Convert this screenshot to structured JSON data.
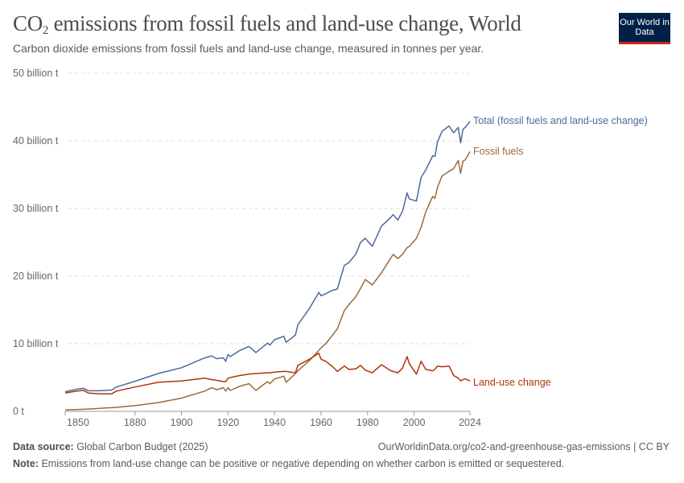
{
  "header": {
    "title_prefix": "CO",
    "title_subscript": "2",
    "title_rest": " emissions from fossil fuels and land-use change, World",
    "subtitle": "Carbon dioxide emissions from fossil fuels and land-use change, measured in tonnes per year.",
    "logo_text": "Our World in Data"
  },
  "footer": {
    "source_label": "Data source:",
    "source_value": "Global Carbon Budget (2025)",
    "url": "OurWorldinData.org/co2-and-greenhouse-gas-emissions | CC BY",
    "note_label": "Note:",
    "note_value": "Emissions from land-use change can be positive or negative depending on whether carbon is emitted or sequestered."
  },
  "chart_data": {
    "type": "line",
    "title": "CO₂ emissions from fossil fuels and land-use change, World",
    "xlabel": "",
    "ylabel": "",
    "xlim": [
      1850,
      2024
    ],
    "ylim": [
      0,
      50
    ],
    "x_ticks": [
      "1850",
      "1880",
      "1900",
      "1920",
      "1940",
      "1960",
      "1980",
      "2000",
      "2024"
    ],
    "y_ticks": [
      {
        "value": 0,
        "label": "0 t"
      },
      {
        "value": 10,
        "label": "10 billion t"
      },
      {
        "value": 20,
        "label": "20 billion t"
      },
      {
        "value": 30,
        "label": "30 billion t"
      },
      {
        "value": 40,
        "label": "40 billion t"
      },
      {
        "value": 50,
        "label": "50 billion t"
      }
    ],
    "grid": "horizontal dashed",
    "legend": "line-end labels",
    "x": [
      1850,
      1855,
      1858,
      1860,
      1865,
      1870,
      1872,
      1880,
      1890,
      1900,
      1910,
      1913,
      1915,
      1918,
      1919,
      1920,
      1921,
      1925,
      1929,
      1932,
      1937,
      1938,
      1940,
      1944,
      1945,
      1949,
      1950,
      1955,
      1959,
      1960,
      1962,
      1965,
      1967,
      1970,
      1972,
      1975,
      1977,
      1979,
      1982,
      1986,
      1990,
      1991,
      1993,
      1995,
      1997,
      1998,
      2001,
      2003,
      2005,
      2008,
      2009,
      2010,
      2012,
      2015,
      2017,
      2019,
      2020,
      2021,
      2022,
      2024
    ],
    "series": [
      {
        "name": "Total (fossil fuels and land-use change)",
        "color": "#4c6a9c",
        "values": [
          2.9,
          3.27,
          3.41,
          3.05,
          3.05,
          3.15,
          3.6,
          4.45,
          5.6,
          6.45,
          7.9,
          8.2,
          7.8,
          7.9,
          7.4,
          8.4,
          8.1,
          9.0,
          9.6,
          8.7,
          10.1,
          9.8,
          10.6,
          11.1,
          10.2,
          11.3,
          12.8,
          15.2,
          17.6,
          17.1,
          17.4,
          17.9,
          18.1,
          21.6,
          22.0,
          23.3,
          25.0,
          25.6,
          24.4,
          27.4,
          28.7,
          29.1,
          28.3,
          29.6,
          32.3,
          31.4,
          31.1,
          34.6,
          35.7,
          37.8,
          37.7,
          39.8,
          41.4,
          42.2,
          41.2,
          42.0,
          39.7,
          41.7,
          42.0,
          42.9
        ]
      },
      {
        "name": "Fossil fuels",
        "color": "#9a6b3c",
        "values": [
          0.2,
          0.27,
          0.31,
          0.35,
          0.45,
          0.55,
          0.6,
          0.85,
          1.3,
          1.95,
          3.0,
          3.5,
          3.2,
          3.5,
          3.0,
          3.5,
          3.1,
          3.7,
          4.1,
          3.1,
          4.4,
          4.1,
          4.8,
          5.2,
          4.3,
          5.6,
          6.0,
          7.5,
          9.0,
          9.4,
          10.0,
          11.3,
          12.2,
          14.9,
          15.8,
          17.0,
          18.2,
          19.5,
          18.7,
          20.5,
          22.7,
          23.2,
          22.6,
          23.2,
          24.2,
          24.4,
          25.6,
          27.2,
          29.5,
          31.8,
          31.5,
          33.1,
          34.8,
          35.5,
          35.9,
          37.1,
          35.2,
          37.0,
          37.2,
          38.4
        ]
      },
      {
        "name": "Land-use change",
        "color": "#b13507",
        "values": [
          2.7,
          3.0,
          3.1,
          2.7,
          2.6,
          2.6,
          3.0,
          3.6,
          4.3,
          4.5,
          4.9,
          4.7,
          4.6,
          4.4,
          4.4,
          4.9,
          5.0,
          5.3,
          5.5,
          5.6,
          5.7,
          5.7,
          5.8,
          5.9,
          5.9,
          5.7,
          6.8,
          7.7,
          8.6,
          7.7,
          7.4,
          6.6,
          5.9,
          6.7,
          6.2,
          6.3,
          6.8,
          6.1,
          5.7,
          6.9,
          6.0,
          5.9,
          5.7,
          6.4,
          8.1,
          7.0,
          5.5,
          7.4,
          6.2,
          6.0,
          6.2,
          6.7,
          6.6,
          6.7,
          5.3,
          4.9,
          4.5,
          4.7,
          4.8,
          4.5
        ]
      }
    ]
  }
}
